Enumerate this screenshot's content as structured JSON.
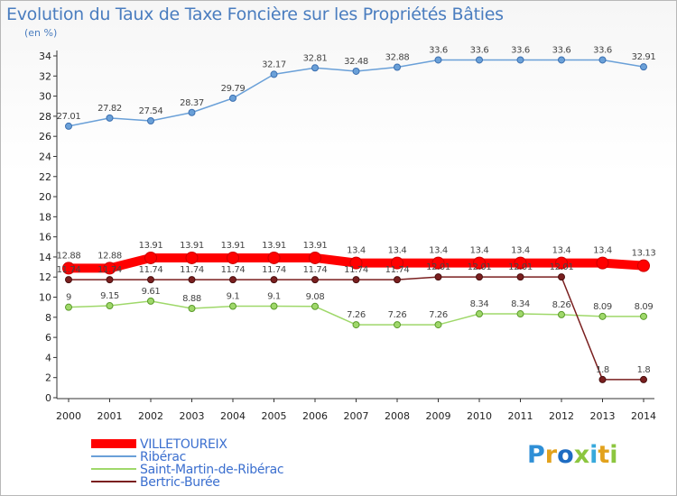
{
  "header": {
    "title": "Evolution du Taux de Taxe Foncière sur les Propriétés Bâties",
    "unit": "(en %)"
  },
  "logo": {
    "text": "Proxiti",
    "colors": [
      "#2f8fd6",
      "#e2a21c",
      "#1e6cc2",
      "#8cc63f",
      "#39a9dc",
      "#e2a21c",
      "#8cc63f"
    ]
  },
  "chart_data": {
    "type": "line",
    "x": [
      "2000",
      "2001",
      "2002",
      "2003",
      "2004",
      "2005",
      "2006",
      "2007",
      "2008",
      "2009",
      "2010",
      "2011",
      "2012",
      "2013",
      "2014"
    ],
    "ylim": [
      0,
      34
    ],
    "yticks": [
      0,
      2,
      4,
      6,
      8,
      10,
      12,
      14,
      16,
      18,
      20,
      22,
      24,
      26,
      28,
      30,
      32,
      34
    ],
    "grid": false,
    "legend_position": "bottom-left",
    "title": "Evolution du Taux de Taxe Foncière sur les Propriétés Bâties",
    "ylabel": "(en %)",
    "series": [
      {
        "name": "VILLETOUREIX",
        "color": "#ff0000",
        "values": [
          12.88,
          12.88,
          13.91,
          13.91,
          13.91,
          13.91,
          13.91,
          13.4,
          13.4,
          13.4,
          13.4,
          13.4,
          13.4,
          13.4,
          13.13
        ],
        "labels": [
          "12.88",
          "12.88",
          "13.91",
          "13.91",
          "13.91",
          "13.91",
          "13.91",
          "13.4",
          "13.4",
          "13.4",
          "13.4",
          "13.4",
          "13.4",
          "13.4",
          "13.13"
        ]
      },
      {
        "name": "Ribérac",
        "color": "#6aa0d8",
        "values": [
          27.01,
          27.82,
          27.54,
          28.37,
          29.79,
          32.17,
          32.81,
          32.48,
          32.88,
          33.6,
          33.6,
          33.6,
          33.6,
          33.6,
          32.91
        ],
        "labels": [
          "27.01",
          "27.82",
          "27.54",
          "28.37",
          "29.79",
          "32.17",
          "32.81",
          "32.48",
          "32.88",
          "33.6",
          "33.6",
          "33.6",
          "33.6",
          "33.6",
          "32.91"
        ]
      },
      {
        "name": "Saint-Martin-de-Ribérac",
        "color": "#9fd86a",
        "values": [
          9,
          9.15,
          9.61,
          8.88,
          9.1,
          9.1,
          9.08,
          7.26,
          7.26,
          7.26,
          8.34,
          8.34,
          8.26,
          8.09,
          8.09
        ],
        "labels": [
          "9",
          "9.15",
          "9.61",
          "8.88",
          "9.1",
          "9.1",
          "9.08",
          "7.26",
          "7.26",
          "7.26",
          "8.34",
          "8.34",
          "8.26",
          "8.09",
          "8.09"
        ]
      },
      {
        "name": "Bertric-Burée",
        "color": "#7a1f1f",
        "values": [
          11.74,
          11.74,
          11.74,
          11.74,
          11.74,
          11.74,
          11.74,
          11.74,
          11.74,
          12.01,
          12.01,
          12.01,
          12.01,
          1.8,
          1.8
        ],
        "labels": [
          "11.74",
          "11.74",
          "11.74",
          "11.74",
          "11.74",
          "11.74",
          "11.74",
          "11.74",
          "11.74",
          "12.01",
          "12.01",
          "12.01",
          "12.01",
          "1.8",
          "1.8"
        ]
      }
    ]
  }
}
